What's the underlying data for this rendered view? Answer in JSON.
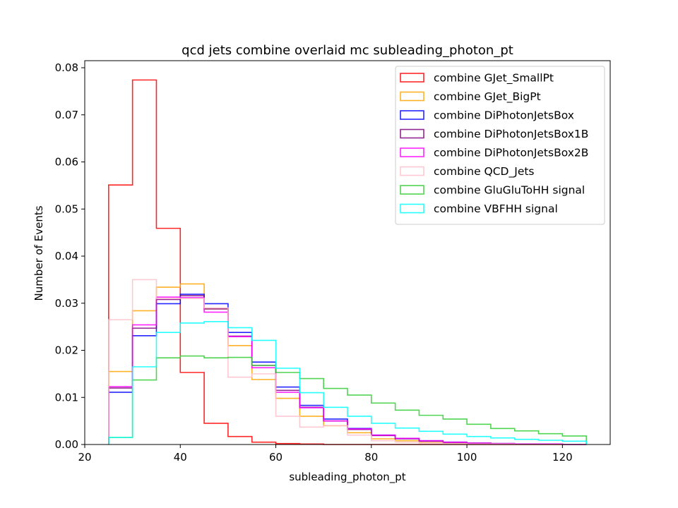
{
  "chart_data": {
    "type": "step-histogram",
    "title": "qcd jets combine overlaid mc subleading_photon_pt",
    "xlabel": "subleading_photon_pt",
    "ylabel": "Number of Events",
    "xlim": [
      20,
      130
    ],
    "ylim": [
      0,
      0.0815
    ],
    "xticks": [
      20,
      40,
      60,
      80,
      100,
      120
    ],
    "yticks": [
      0.0,
      0.01,
      0.02,
      0.03,
      0.04,
      0.05,
      0.06,
      0.07,
      0.08
    ],
    "ytick_labels": [
      "0.00",
      "0.01",
      "0.02",
      "0.03",
      "0.04",
      "0.05",
      "0.06",
      "0.07",
      "0.08"
    ],
    "legend_position": "upper right",
    "bin_edges": [
      25,
      30,
      35,
      40,
      45,
      50,
      55,
      60,
      65,
      70,
      75,
      80,
      85,
      90,
      95,
      100,
      105,
      110,
      115,
      120,
      125
    ],
    "series": [
      {
        "name": "combine GJet_SmallPt",
        "color": "#ff0000",
        "values": [
          0.0551,
          0.0774,
          0.0459,
          0.0153,
          0.0045,
          0.0017,
          0.0005,
          0.0002,
          0.0001,
          0.0,
          0.0,
          0.0,
          0.0,
          0.0,
          0.0,
          0.0,
          0.0,
          0.0,
          0.0,
          0.0
        ]
      },
      {
        "name": "combine GJet_BigPt",
        "color": "#ffa500",
        "values": [
          0.0155,
          0.0284,
          0.0334,
          0.0341,
          0.0288,
          0.021,
          0.0138,
          0.0098,
          0.006,
          0.004,
          0.0025,
          0.0012,
          0.0008,
          0.0004,
          0.0002,
          0.0001,
          0.0001,
          0.0,
          0.0,
          0.0
        ]
      },
      {
        "name": "combine DiPhotonJetsBox",
        "color": "#0000ff",
        "values": [
          0.0111,
          0.0231,
          0.0299,
          0.0319,
          0.0299,
          0.0238,
          0.0175,
          0.0122,
          0.0083,
          0.0054,
          0.0034,
          0.002,
          0.0013,
          0.0008,
          0.0005,
          0.0003,
          0.0002,
          0.0001,
          0.0001,
          0.0
        ]
      },
      {
        "name": "combine DiPhotonJetsBox1B",
        "color": "#800080",
        "values": [
          0.012,
          0.0247,
          0.0308,
          0.0316,
          0.0288,
          0.023,
          0.0168,
          0.0115,
          0.0079,
          0.005,
          0.0032,
          0.0019,
          0.0012,
          0.0007,
          0.0004,
          0.0003,
          0.0002,
          0.0001,
          0.0001,
          0.0
        ]
      },
      {
        "name": "combine DiPhotonJetsBox2B",
        "color": "#ff00ff",
        "values": [
          0.0123,
          0.0254,
          0.0313,
          0.0312,
          0.0281,
          0.0229,
          0.0163,
          0.0111,
          0.0078,
          0.005,
          0.0033,
          0.002,
          0.0013,
          0.0008,
          0.0005,
          0.0003,
          0.0002,
          0.0001,
          0.0001,
          0.0
        ]
      },
      {
        "name": "combine QCD_Jets",
        "color": "#ffc0cb",
        "values": [
          0.0265,
          0.035,
          0.031,
          0.031,
          0.029,
          0.0143,
          0.015,
          0.006,
          0.0037,
          0.004,
          0.002,
          0.0008,
          0.0005,
          0.0003,
          0.0002,
          0.0001,
          0.0001,
          0.0,
          0.0,
          0.0
        ]
      },
      {
        "name": "combine GluGluToHH signal",
        "color": "#32cd32",
        "values": [
          0.0015,
          0.0137,
          0.0184,
          0.0188,
          0.0184,
          0.0185,
          0.0168,
          0.0153,
          0.014,
          0.0119,
          0.0105,
          0.0088,
          0.0073,
          0.0062,
          0.0054,
          0.0043,
          0.0034,
          0.0029,
          0.0023,
          0.0018
        ]
      },
      {
        "name": "combine VBFHH signal",
        "color": "#00ffff",
        "values": [
          0.0015,
          0.0165,
          0.0238,
          0.0258,
          0.0261,
          0.0248,
          0.0221,
          0.0162,
          0.011,
          0.0079,
          0.006,
          0.0045,
          0.0035,
          0.0028,
          0.0022,
          0.0017,
          0.0014,
          0.0011,
          0.0009,
          0.0007
        ]
      }
    ]
  }
}
